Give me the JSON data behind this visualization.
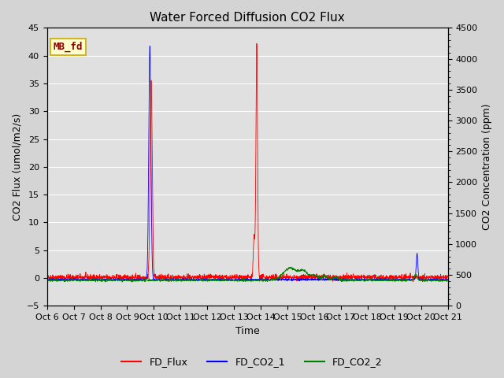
{
  "title": "Water Forced Diffusion CO2 Flux",
  "xlabel": "Time",
  "ylabel_left": "CO2 Flux (umol/m2/s)",
  "ylabel_right": "CO2 Concentration (ppm)",
  "ylim_left": [
    -5,
    45
  ],
  "ylim_right": [
    0,
    4500
  ],
  "yticks_left": [
    -5,
    0,
    5,
    10,
    15,
    20,
    25,
    30,
    35,
    40,
    45
  ],
  "yticks_right": [
    0,
    500,
    1000,
    1500,
    2000,
    2500,
    3000,
    3500,
    4000,
    4500
  ],
  "xtick_labels": [
    "Oct 6",
    "Oct 7",
    "Oct 8",
    "Oct 9",
    "Oct 10",
    "Oct 11",
    "Oct 12",
    "Oct 13",
    "Oct 14",
    "Oct 15",
    "Oct 16",
    "Oct 17",
    "Oct 18",
    "Oct 19",
    "Oct 20",
    "Oct 21"
  ],
  "site_label": "MB_fd",
  "fig_facecolor": "#d4d4d4",
  "plot_bg_color": "#e0e0e0",
  "legend_entries": [
    "FD_Flux",
    "FD_CO2_1",
    "FD_CO2_2"
  ],
  "line_colors": [
    "red",
    "blue",
    "green"
  ],
  "title_fontsize": 11,
  "axis_label_fontsize": 9,
  "tick_fontsize": 8,
  "legend_fontsize": 9,
  "grid_color": "#ffffff",
  "site_label_facecolor": "#ffffcc",
  "site_label_edgecolor": "#ccaa00",
  "site_label_textcolor": "#880000"
}
